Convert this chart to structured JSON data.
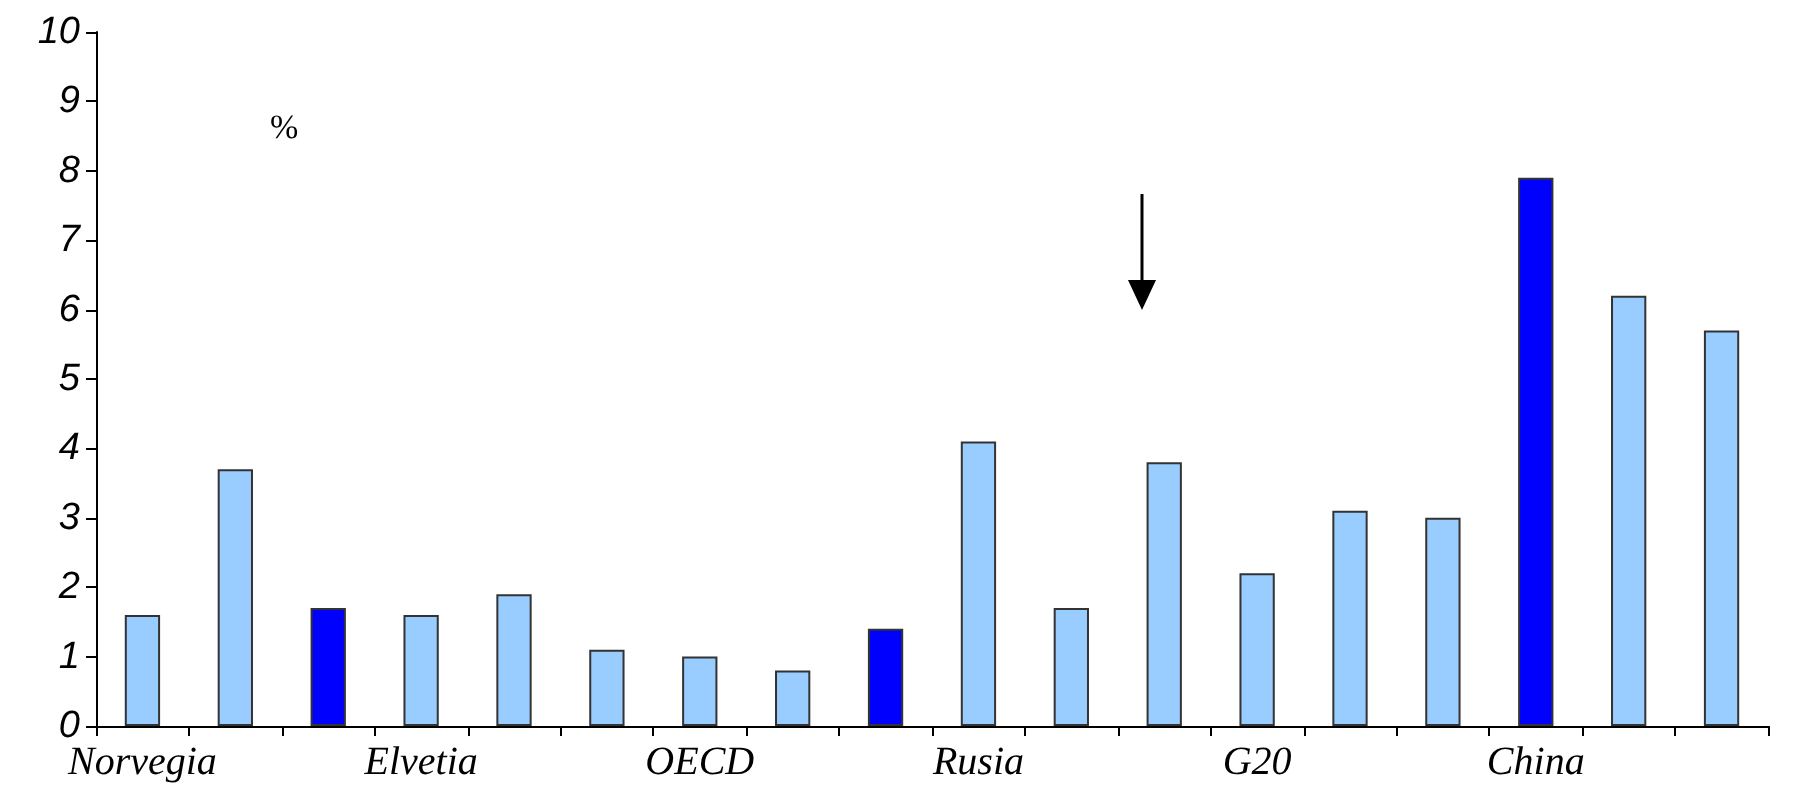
{
  "chart_data": {
    "type": "bar",
    "categories": [
      "Norvegia",
      null,
      null,
      "Elvetia",
      null,
      null,
      "OECD",
      null,
      null,
      "Rusia",
      null,
      null,
      "G20",
      null,
      null,
      "China",
      null,
      null
    ],
    "values": [
      1.6,
      3.7,
      1.7,
      1.6,
      1.9,
      1.1,
      1.0,
      0.8,
      1.4,
      4.1,
      1.7,
      3.8,
      2.2,
      3.1,
      3.0,
      7.9,
      6.2,
      5.7
    ],
    "colors": [
      "#99ccff",
      "#99ccff",
      "#0000ff",
      "#99ccff",
      "#99ccff",
      "#99ccff",
      "#99ccff",
      "#99ccff",
      "#0000ff",
      "#99ccff",
      "#99ccff",
      "#99ccff",
      "#99ccff",
      "#99ccff",
      "#99ccff",
      "#0000ff",
      "#99ccff",
      "#99ccff"
    ],
    "ylim": [
      0,
      10
    ],
    "yticks": [
      0,
      1,
      2,
      3,
      4,
      5,
      6,
      7,
      8,
      9,
      10
    ],
    "annotations": [
      "%"
    ],
    "grid": false
  }
}
